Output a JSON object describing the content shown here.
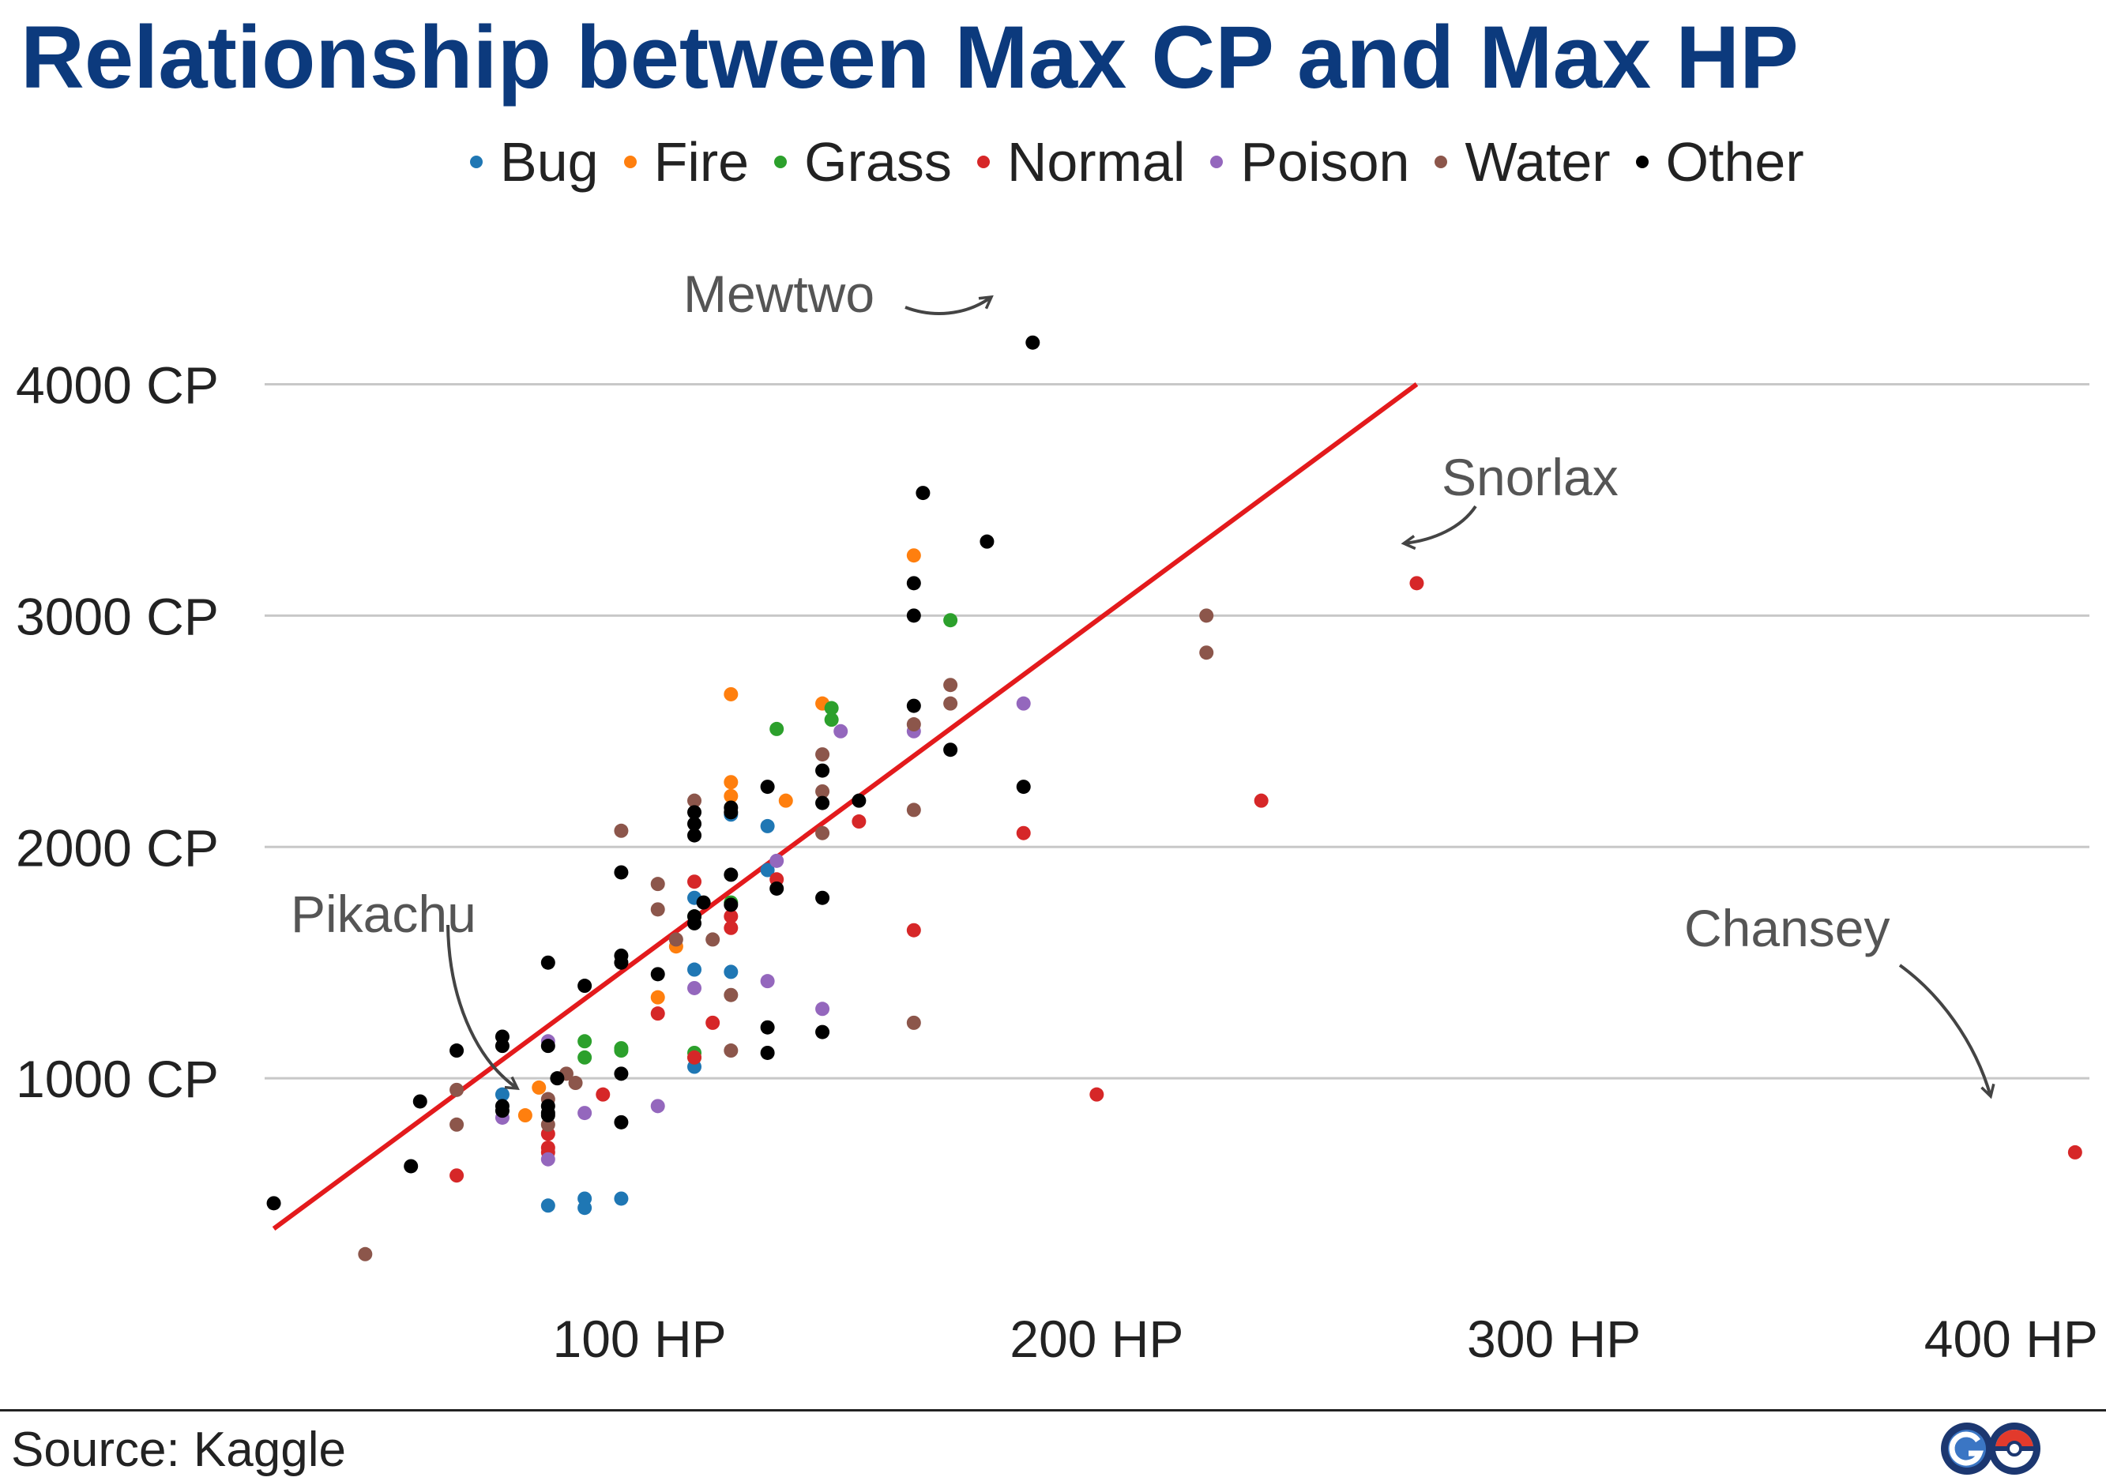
{
  "title": "Relationship between Max CP and Max HP",
  "source": "Source: Kaggle",
  "logo": {
    "label": "GO",
    "icon": "pokemon-go-logo-icon",
    "colors": [
      "#1c3770",
      "#3b76c4",
      "#e23a2c"
    ]
  },
  "chart_data": {
    "type": "scatter",
    "title": "Relationship between Max CP and Max HP",
    "xlabel": "",
    "ylabel": "",
    "xlim": [
      18,
      418
    ],
    "ylim": [
      130,
      4500
    ],
    "x_ticks": [
      {
        "value": 100,
        "label": "100 HP"
      },
      {
        "value": 200,
        "label": "200 HP"
      },
      {
        "value": 300,
        "label": "300 HP"
      },
      {
        "value": 400,
        "label": "400 HP"
      }
    ],
    "y_ticks": [
      {
        "value": 1000,
        "label": "1000 CP"
      },
      {
        "value": 2000,
        "label": "2000 CP"
      },
      {
        "value": 3000,
        "label": "3000 CP"
      },
      {
        "value": 4000,
        "label": "4000 CP"
      }
    ],
    "grid": "horizontal",
    "legend_position": "top",
    "trendline": {
      "color": "#e31a1c",
      "from": [
        20,
        350
      ],
      "to": [
        270,
        4000
      ]
    },
    "series": [
      {
        "name": "Bug",
        "color": "#1f77b4",
        "points": [
          [
            70,
            930
          ],
          [
            80,
            450
          ],
          [
            88,
            480
          ],
          [
            88,
            440
          ],
          [
            96,
            480
          ],
          [
            112,
            1050
          ],
          [
            112,
            1470
          ],
          [
            120,
            1460
          ],
          [
            112,
            1780
          ],
          [
            120,
            2140
          ],
          [
            128,
            2090
          ],
          [
            128,
            1900
          ]
        ]
      },
      {
        "name": "Fire",
        "color": "#ff7f0e",
        "points": [
          [
            75,
            840
          ],
          [
            78,
            960
          ],
          [
            104,
            1350
          ],
          [
            108,
            1570
          ],
          [
            120,
            2280
          ],
          [
            120,
            2220
          ],
          [
            120,
            2660
          ],
          [
            132,
            2200
          ],
          [
            140,
            2620
          ],
          [
            160,
            3260
          ]
        ]
      },
      {
        "name": "Grass",
        "color": "#2ca02c",
        "points": [
          [
            88,
            1160
          ],
          [
            88,
            1090
          ],
          [
            96,
            1130
          ],
          [
            96,
            1120
          ],
          [
            112,
            1110
          ],
          [
            112,
            1090
          ],
          [
            112,
            1700
          ],
          [
            120,
            1760
          ],
          [
            130,
            2510
          ],
          [
            142,
            2600
          ],
          [
            142,
            2550
          ],
          [
            168,
            2980
          ]
        ]
      },
      {
        "name": "Normal",
        "color": "#d62728",
        "points": [
          [
            60,
            580
          ],
          [
            80,
            760
          ],
          [
            80,
            700
          ],
          [
            80,
            680
          ],
          [
            92,
            930
          ],
          [
            104,
            1280
          ],
          [
            112,
            1090
          ],
          [
            112,
            1850
          ],
          [
            116,
            1240
          ],
          [
            120,
            1700
          ],
          [
            120,
            1650
          ],
          [
            130,
            1860
          ],
          [
            148,
            2110
          ],
          [
            160,
            1640
          ],
          [
            184,
            2060
          ],
          [
            200,
            930
          ],
          [
            236,
            2200
          ],
          [
            270,
            3140
          ],
          [
            414,
            680
          ]
        ]
      },
      {
        "name": "Poison",
        "color": "#9467bd",
        "points": [
          [
            70,
            830
          ],
          [
            80,
            650
          ],
          [
            80,
            1160
          ],
          [
            88,
            850
          ],
          [
            104,
            880
          ],
          [
            112,
            1390
          ],
          [
            128,
            1420
          ],
          [
            130,
            1940
          ],
          [
            140,
            1300
          ],
          [
            144,
            2500
          ],
          [
            160,
            2500
          ],
          [
            184,
            2620
          ]
        ]
      },
      {
        "name": "Water",
        "color": "#8c564b",
        "points": [
          [
            40,
            240
          ],
          [
            60,
            950
          ],
          [
            60,
            800
          ],
          [
            80,
            910
          ],
          [
            80,
            800
          ],
          [
            84,
            1020
          ],
          [
            86,
            980
          ],
          [
            96,
            2070
          ],
          [
            104,
            1840
          ],
          [
            104,
            1730
          ],
          [
            108,
            1600
          ],
          [
            112,
            2200
          ],
          [
            116,
            1600
          ],
          [
            120,
            1360
          ],
          [
            120,
            1120
          ],
          [
            140,
            2400
          ],
          [
            140,
            2240
          ],
          [
            140,
            2060
          ],
          [
            160,
            2530
          ],
          [
            160,
            2160
          ],
          [
            160,
            1240
          ],
          [
            168,
            2700
          ],
          [
            168,
            2620
          ],
          [
            224,
            3000
          ],
          [
            224,
            2840
          ]
        ]
      },
      {
        "name": "Other",
        "color": "#000000",
        "points": [
          [
            20,
            460
          ],
          [
            50,
            620
          ],
          [
            52,
            900
          ],
          [
            60,
            1120
          ],
          [
            70,
            1180
          ],
          [
            70,
            1140
          ],
          [
            70,
            880
          ],
          [
            70,
            860
          ],
          [
            80,
            1500
          ],
          [
            80,
            1140
          ],
          [
            80,
            880
          ],
          [
            80,
            850
          ],
          [
            80,
            840
          ],
          [
            82,
            1000
          ],
          [
            88,
            1400
          ],
          [
            96,
            1890
          ],
          [
            96,
            1530
          ],
          [
            96,
            1500
          ],
          [
            96,
            1020
          ],
          [
            96,
            810
          ],
          [
            104,
            1450
          ],
          [
            112,
            2150
          ],
          [
            112,
            2100
          ],
          [
            112,
            2050
          ],
          [
            112,
            1700
          ],
          [
            112,
            1670
          ],
          [
            114,
            1760
          ],
          [
            120,
            2170
          ],
          [
            120,
            2150
          ],
          [
            120,
            1880
          ],
          [
            120,
            1750
          ],
          [
            128,
            2260
          ],
          [
            128,
            1220
          ],
          [
            128,
            1110
          ],
          [
            130,
            1820
          ],
          [
            140,
            2330
          ],
          [
            140,
            2190
          ],
          [
            140,
            1780
          ],
          [
            140,
            1200
          ],
          [
            148,
            2200
          ],
          [
            160,
            3140
          ],
          [
            160,
            3000
          ],
          [
            160,
            2610
          ],
          [
            162,
            3530
          ],
          [
            168,
            2420
          ],
          [
            176,
            3320
          ],
          [
            184,
            2260
          ],
          [
            186,
            4180
          ]
        ]
      }
    ],
    "annotations": [
      {
        "text": "Mewtwo",
        "point": [
          186,
          4180
        ]
      },
      {
        "text": "Snorlax",
        "point": [
          270,
          3140
        ]
      },
      {
        "text": "Pikachu",
        "point": [
          70,
          880
        ]
      },
      {
        "text": "Chansey",
        "point": [
          414,
          680
        ]
      }
    ]
  }
}
